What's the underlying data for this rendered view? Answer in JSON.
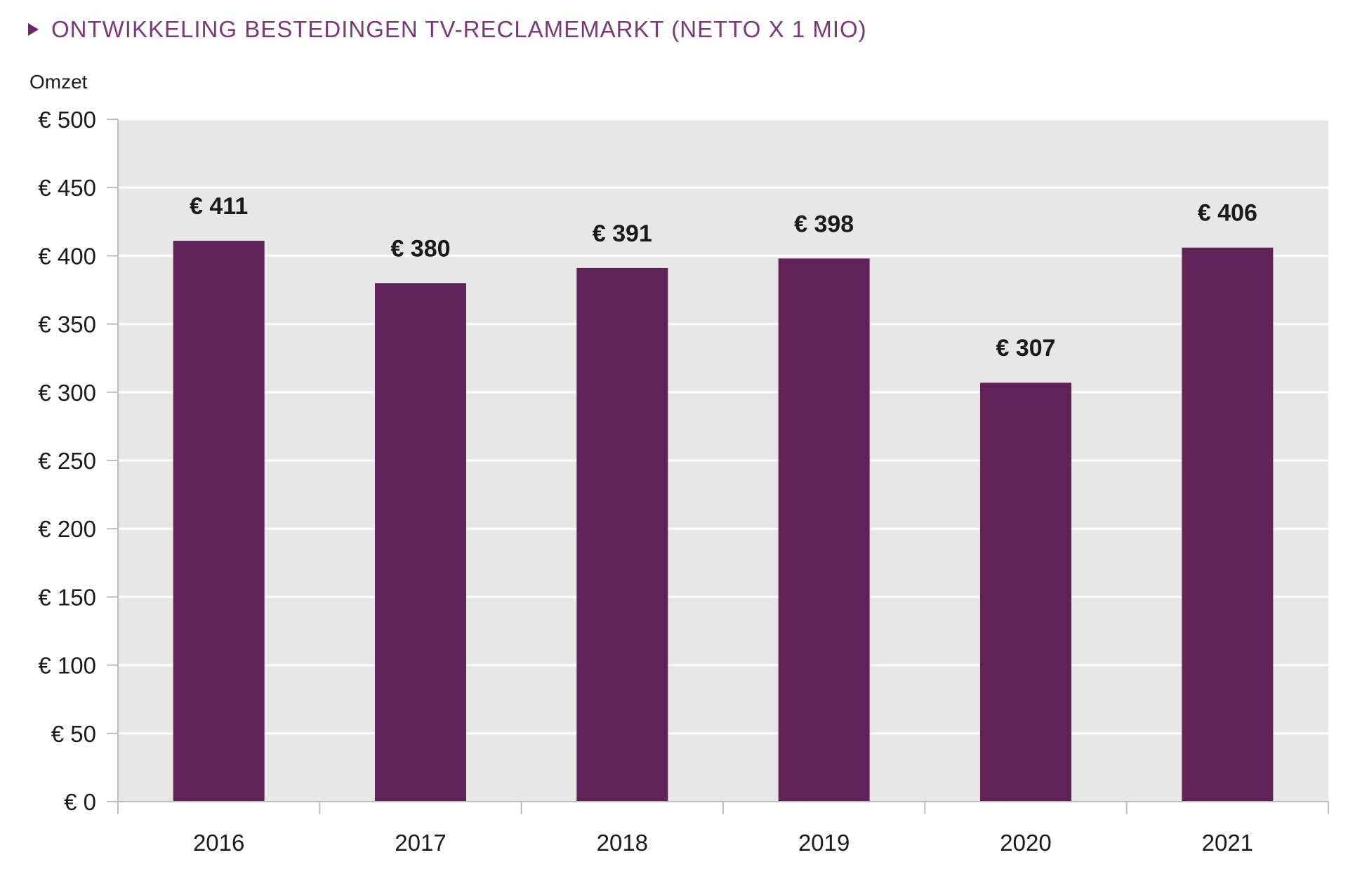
{
  "colors": {
    "title": "#7a3a78",
    "bar": "#612257",
    "plot_bg": "#e7e7e7",
    "gridline": "#ffffff",
    "axis": "#bdbdbd",
    "text": "#1a1a1a"
  },
  "chart_data": {
    "type": "bar",
    "title": "ONTWIKKELING BESTEDINGEN TV-RECLAMEMARKT (NETTO X 1 MIO)",
    "ylabel": "Omzet",
    "xlabel": "",
    "categories": [
      "2016",
      "2017",
      "2018",
      "2019",
      "2020",
      "2021"
    ],
    "values": [
      411,
      380,
      391,
      398,
      307,
      406
    ],
    "value_labels": [
      "€ 411",
      "€ 380",
      "€ 391",
      "€ 398",
      "€ 307",
      "€ 406"
    ],
    "ylim": [
      0,
      500
    ],
    "yticks": [
      0,
      50,
      100,
      150,
      200,
      250,
      300,
      350,
      400,
      450,
      500
    ],
    "ytick_labels": [
      "€ 0",
      "€ 50",
      "€ 100",
      "€ 150",
      "€ 200",
      "€ 250",
      "€ 300",
      "€ 350",
      "€ 400",
      "€ 450",
      "€ 500"
    ],
    "grid": true,
    "legend": "none"
  }
}
